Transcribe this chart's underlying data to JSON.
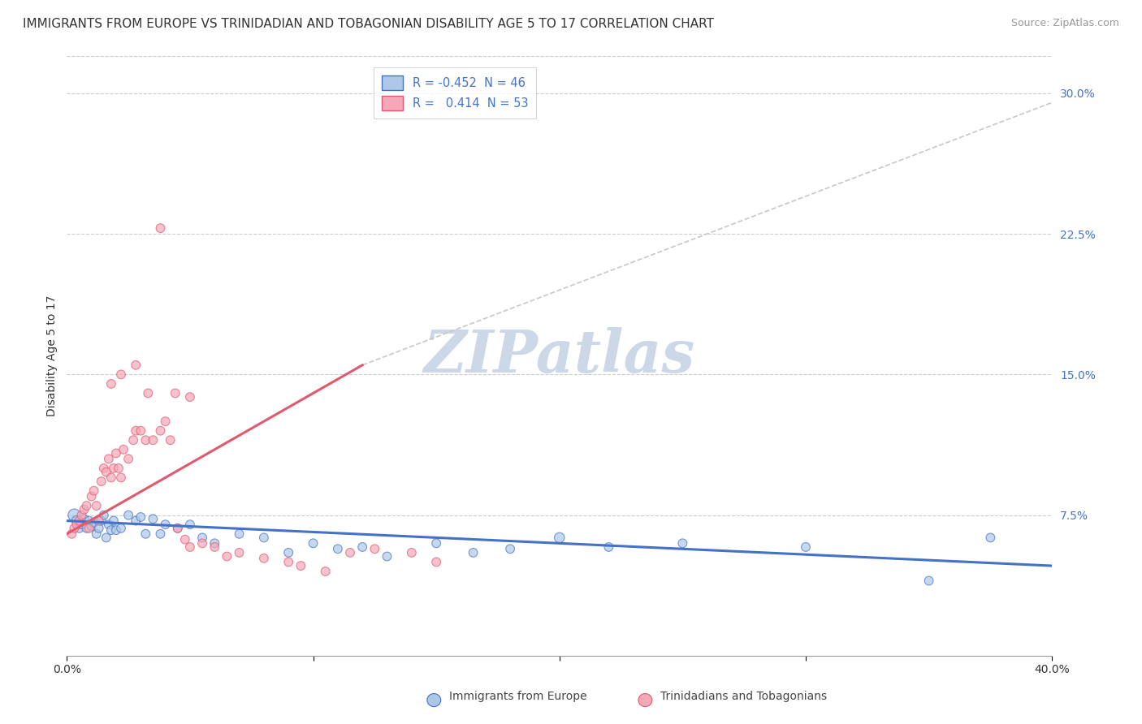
{
  "title": "IMMIGRANTS FROM EUROPE VS TRINIDADIAN AND TOBAGONIAN DISABILITY AGE 5 TO 17 CORRELATION CHART",
  "source": "Source: ZipAtlas.com",
  "ylabel": "Disability Age 5 to 17",
  "yticks": [
    "7.5%",
    "15.0%",
    "22.5%",
    "30.0%"
  ],
  "ytick_vals": [
    0.075,
    0.15,
    0.225,
    0.3
  ],
  "xlim": [
    0.0,
    0.4
  ],
  "ylim": [
    0.0,
    0.32
  ],
  "background_color": "#ffffff",
  "grid_color": "#cccccc",
  "watermark": "ZIPatlas",
  "legend_label_blue": "Immigrants from Europe",
  "legend_label_pink": "Trinidadians and Tobagonians",
  "legend_r_blue": "R = -0.452",
  "legend_n_blue": "N = 46",
  "legend_r_pink": "R =   0.414",
  "legend_n_pink": "N = 53",
  "blue_scatter_x": [
    0.003,
    0.004,
    0.005,
    0.006,
    0.007,
    0.008,
    0.009,
    0.01,
    0.011,
    0.012,
    0.013,
    0.014,
    0.015,
    0.016,
    0.017,
    0.018,
    0.019,
    0.02,
    0.022,
    0.025,
    0.028,
    0.03,
    0.032,
    0.035,
    0.038,
    0.04,
    0.045,
    0.05,
    0.055,
    0.06,
    0.07,
    0.08,
    0.09,
    0.1,
    0.11,
    0.12,
    0.13,
    0.15,
    0.165,
    0.18,
    0.2,
    0.22,
    0.25,
    0.3,
    0.35,
    0.375
  ],
  "blue_scatter_y": [
    0.075,
    0.072,
    0.068,
    0.07,
    0.073,
    0.068,
    0.072,
    0.069,
    0.071,
    0.065,
    0.068,
    0.072,
    0.075,
    0.063,
    0.07,
    0.067,
    0.072,
    0.067,
    0.068,
    0.075,
    0.072,
    0.074,
    0.065,
    0.073,
    0.065,
    0.07,
    0.068,
    0.07,
    0.063,
    0.06,
    0.065,
    0.063,
    0.055,
    0.06,
    0.057,
    0.058,
    0.053,
    0.06,
    0.055,
    0.057,
    0.063,
    0.058,
    0.06,
    0.058,
    0.04,
    0.063
  ],
  "blue_scatter_size": [
    120,
    80,
    60,
    60,
    60,
    60,
    60,
    60,
    60,
    60,
    60,
    60,
    60,
    60,
    60,
    60,
    60,
    60,
    60,
    60,
    60,
    60,
    60,
    60,
    60,
    60,
    60,
    60,
    60,
    60,
    60,
    60,
    60,
    60,
    60,
    60,
    60,
    60,
    60,
    60,
    80,
    60,
    60,
    60,
    60,
    60
  ],
  "pink_scatter_x": [
    0.002,
    0.003,
    0.004,
    0.005,
    0.006,
    0.007,
    0.008,
    0.009,
    0.01,
    0.011,
    0.012,
    0.013,
    0.014,
    0.015,
    0.016,
    0.017,
    0.018,
    0.019,
    0.02,
    0.021,
    0.022,
    0.023,
    0.025,
    0.027,
    0.028,
    0.03,
    0.032,
    0.035,
    0.038,
    0.04,
    0.042,
    0.045,
    0.048,
    0.05,
    0.055,
    0.06,
    0.065,
    0.07,
    0.08,
    0.09,
    0.095,
    0.105,
    0.115,
    0.125,
    0.14,
    0.15,
    0.018,
    0.022,
    0.028,
    0.033,
    0.038,
    0.044,
    0.05
  ],
  "pink_scatter_y": [
    0.065,
    0.068,
    0.07,
    0.072,
    0.075,
    0.078,
    0.08,
    0.068,
    0.085,
    0.088,
    0.08,
    0.072,
    0.093,
    0.1,
    0.098,
    0.105,
    0.095,
    0.1,
    0.108,
    0.1,
    0.095,
    0.11,
    0.105,
    0.115,
    0.12,
    0.12,
    0.115,
    0.115,
    0.12,
    0.125,
    0.115,
    0.068,
    0.062,
    0.058,
    0.06,
    0.058,
    0.053,
    0.055,
    0.052,
    0.05,
    0.048,
    0.045,
    0.055,
    0.057,
    0.055,
    0.05,
    0.145,
    0.15,
    0.155,
    0.14,
    0.228,
    0.14,
    0.138
  ],
  "pink_scatter_size": [
    60,
    60,
    60,
    60,
    60,
    60,
    60,
    60,
    60,
    60,
    60,
    60,
    60,
    60,
    60,
    60,
    60,
    60,
    60,
    60,
    60,
    60,
    60,
    60,
    60,
    60,
    60,
    60,
    60,
    60,
    60,
    60,
    60,
    60,
    60,
    60,
    60,
    60,
    60,
    60,
    60,
    60,
    60,
    60,
    60,
    60,
    60,
    60,
    60,
    60,
    60,
    60,
    60
  ],
  "blue_line_x": [
    0.0,
    0.4
  ],
  "blue_line_y": [
    0.072,
    0.048
  ],
  "pink_line_x": [
    0.0,
    0.12
  ],
  "pink_line_y": [
    0.065,
    0.155
  ],
  "dashed_line_x": [
    0.12,
    0.4
  ],
  "dashed_line_y": [
    0.155,
    0.295
  ],
  "blue_color": "#4472c4",
  "pink_color": "#e05a6e",
  "blue_scatter_color": "#aec6e8",
  "pink_scatter_color": "#f4a8b8",
  "dashed_line_color": "#c8c8c8",
  "title_fontsize": 11,
  "axis_label_fontsize": 10,
  "tick_fontsize": 10,
  "source_fontsize": 9,
  "watermark_color": "#ccd8e8",
  "watermark_fontsize": 52
}
